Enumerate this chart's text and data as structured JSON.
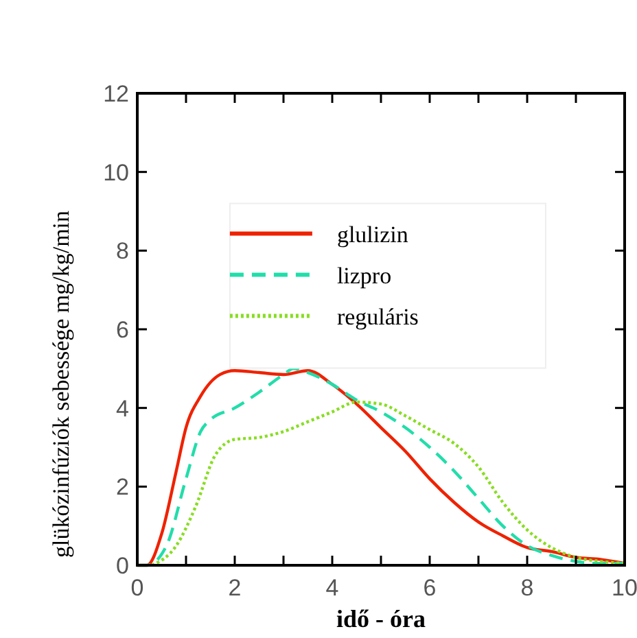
{
  "chart_data": {
    "type": "line",
    "xlabel": "idő - óra",
    "ylabel": "glükózinfúziók sebessége mg/kg/min",
    "xlim": [
      0,
      10
    ],
    "ylim": [
      0,
      12
    ],
    "xticks": [
      0,
      {
        "value": 1,
        "label": null
      },
      2,
      {
        "value": 3,
        "label": null
      },
      4,
      {
        "value": 5,
        "label": null
      },
      6,
      {
        "value": 7,
        "label": null
      },
      8,
      {
        "value": 9,
        "label": null
      },
      10
    ],
    "yticks": [
      0,
      2,
      4,
      6,
      8,
      10,
      12
    ],
    "grid": false,
    "legend": "top",
    "marker": "none",
    "series": [
      {
        "name": "glulizin",
        "color": "#ee2200",
        "line_style": "solid",
        "x": [
          0,
          0.2,
          0.5,
          0.8,
          1,
          1.3,
          1.7,
          2,
          2.5,
          3,
          3.5,
          4,
          4.5,
          5,
          5.5,
          6,
          6.5,
          7,
          7.5,
          8,
          8.5,
          9,
          9.5,
          10
        ],
        "values": [
          0,
          0,
          0.8,
          2.4,
          3.5,
          4.3,
          4.85,
          4.95,
          4.9,
          4.85,
          4.95,
          4.6,
          4.1,
          3.5,
          2.9,
          2.2,
          1.6,
          1.1,
          0.75,
          0.45,
          0.35,
          0.2,
          0.15,
          0.05
        ]
      },
      {
        "name": "lizpro",
        "color": "#22ddaa",
        "line_style": "dashed",
        "x": [
          0,
          0.2,
          0.6,
          1,
          1.3,
          1.5,
          2,
          2.5,
          3,
          3.2,
          3.5,
          4,
          4.5,
          5,
          5.5,
          6,
          6.5,
          7,
          7.5,
          8,
          8.5,
          9,
          9.5,
          10
        ],
        "values": [
          0,
          0,
          0.5,
          2.2,
          3.4,
          3.7,
          4.0,
          4.4,
          4.85,
          5.0,
          4.9,
          4.6,
          4.2,
          3.9,
          3.5,
          3.0,
          2.4,
          1.7,
          1.0,
          0.5,
          0.25,
          0.1,
          0.05,
          0.05
        ]
      },
      {
        "name": "reguláris",
        "color": "#88dd22",
        "line_style": "dotted",
        "x": [
          0.3,
          0.8,
          1.2,
          1.6,
          2,
          2.5,
          3,
          3.5,
          4,
          4.5,
          5,
          5.5,
          6,
          6.5,
          7,
          7.5,
          8,
          8.5,
          9,
          9.5,
          10
        ],
        "values": [
          0,
          0.5,
          1.5,
          2.8,
          3.2,
          3.25,
          3.4,
          3.65,
          3.9,
          4.15,
          4.1,
          3.8,
          3.45,
          3.1,
          2.5,
          1.6,
          0.9,
          0.45,
          0.2,
          0.1,
          0.05
        ]
      }
    ]
  }
}
